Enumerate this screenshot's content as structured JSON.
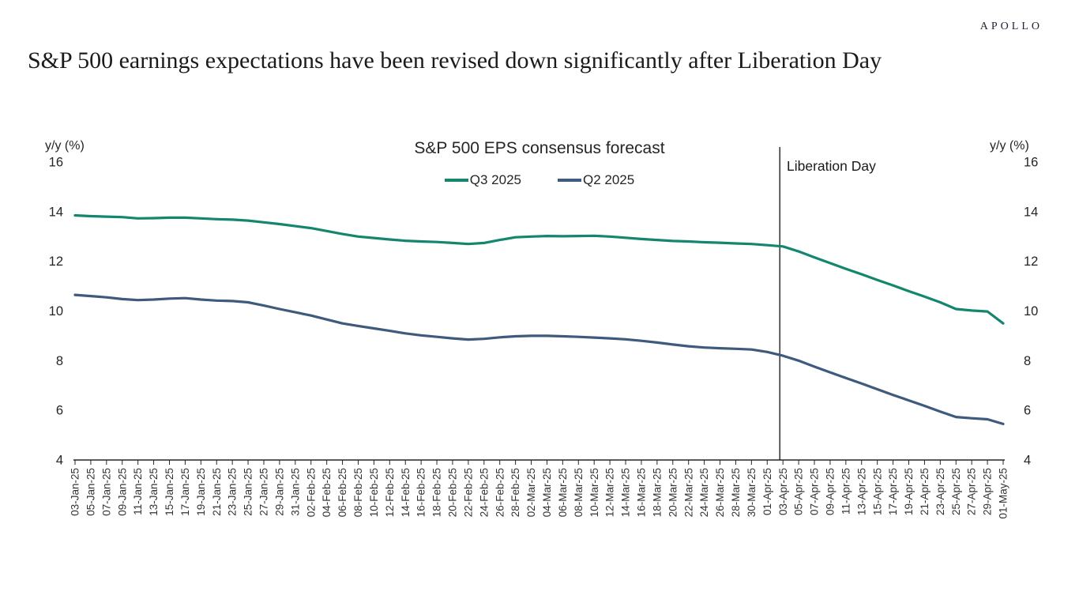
{
  "brand": {
    "logo": "APOLLO"
  },
  "page_title": "S&P 500 earnings expectations have been revised down significantly after Liberation Day",
  "chart_data": {
    "type": "line",
    "title": "S&P 500 EPS consensus forecast",
    "y_axis_label_left": "y/y (%)",
    "y_axis_label_right": "y/y (%)",
    "ylim": [
      4,
      16
    ],
    "yticks": [
      4,
      6,
      8,
      10,
      12,
      14,
      16
    ],
    "grid": false,
    "legend_position": "top-center",
    "axis_color": "#262626",
    "annotation": {
      "label": "Liberation Day",
      "line_color": "#111111",
      "x_index": 44.8,
      "between": [
        "01-Apr-25",
        "03-Apr-25"
      ]
    },
    "categories": [
      "03-Jan-25",
      "05-Jan-25",
      "07-Jan-25",
      "09-Jan-25",
      "11-Jan-25",
      "13-Jan-25",
      "15-Jan-25",
      "17-Jan-25",
      "19-Jan-25",
      "21-Jan-25",
      "23-Jan-25",
      "25-Jan-25",
      "27-Jan-25",
      "29-Jan-25",
      "31-Jan-25",
      "02-Feb-25",
      "04-Feb-25",
      "06-Feb-25",
      "08-Feb-25",
      "10-Feb-25",
      "12-Feb-25",
      "14-Feb-25",
      "16-Feb-25",
      "18-Feb-25",
      "20-Feb-25",
      "22-Feb-25",
      "24-Feb-25",
      "26-Feb-25",
      "28-Feb-25",
      "02-Mar-25",
      "04-Mar-25",
      "06-Mar-25",
      "08-Mar-25",
      "10-Mar-25",
      "12-Mar-25",
      "14-Mar-25",
      "16-Mar-25",
      "18-Mar-25",
      "20-Mar-25",
      "22-Mar-25",
      "24-Mar-25",
      "26-Mar-25",
      "28-Mar-25",
      "30-Mar-25",
      "01-Apr-25",
      "03-Apr-25",
      "05-Apr-25",
      "07-Apr-25",
      "09-Apr-25",
      "11-Apr-25",
      "13-Apr-25",
      "15-Apr-25",
      "17-Apr-25",
      "19-Apr-25",
      "21-Apr-25",
      "23-Apr-25",
      "25-Apr-25",
      "27-Apr-25",
      "29-Apr-25",
      "01-May-25"
    ],
    "series": [
      {
        "name": "Q3 2025",
        "color": "#15866e",
        "values": [
          13.85,
          13.82,
          13.8,
          13.78,
          13.73,
          13.74,
          13.76,
          13.76,
          13.73,
          13.7,
          13.68,
          13.64,
          13.57,
          13.5,
          13.42,
          13.34,
          13.22,
          13.1,
          13.0,
          12.94,
          12.88,
          12.83,
          12.8,
          12.78,
          12.74,
          12.7,
          12.74,
          12.86,
          12.97,
          13.0,
          13.02,
          13.01,
          13.02,
          13.03,
          13.0,
          12.95,
          12.9,
          12.86,
          12.82,
          12.8,
          12.77,
          12.75,
          12.72,
          12.7,
          12.65,
          12.6,
          12.4,
          12.16,
          11.93,
          11.7,
          11.48,
          11.25,
          11.03,
          10.8,
          10.58,
          10.35,
          10.08,
          10.02,
          9.98,
          9.5
        ]
      },
      {
        "name": "Q2 2025",
        "color": "#3e5a7d",
        "values": [
          10.65,
          10.6,
          10.55,
          10.48,
          10.44,
          10.46,
          10.5,
          10.52,
          10.46,
          10.42,
          10.4,
          10.35,
          10.22,
          10.08,
          9.95,
          9.82,
          9.66,
          9.5,
          9.4,
          9.3,
          9.2,
          9.1,
          9.02,
          8.96,
          8.9,
          8.85,
          8.88,
          8.94,
          8.98,
          9.0,
          9.0,
          8.98,
          8.96,
          8.93,
          8.9,
          8.86,
          8.8,
          8.73,
          8.65,
          8.58,
          8.53,
          8.5,
          8.48,
          8.45,
          8.35,
          8.2,
          8.0,
          7.76,
          7.53,
          7.3,
          7.08,
          6.85,
          6.62,
          6.4,
          6.18,
          5.95,
          5.73,
          5.68,
          5.64,
          5.45
        ]
      }
    ]
  }
}
